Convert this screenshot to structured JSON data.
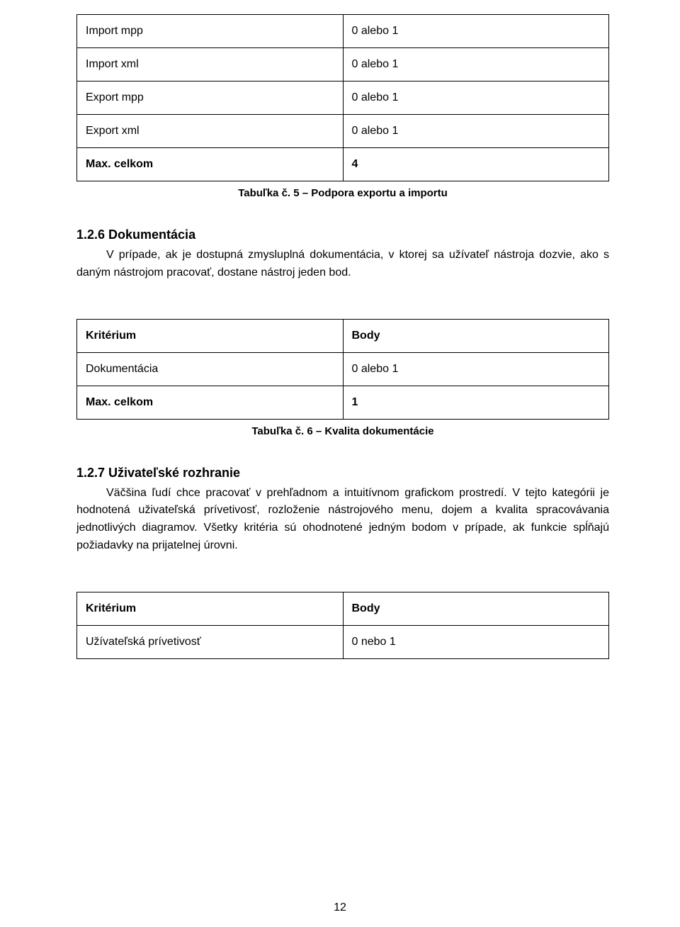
{
  "page_number": "12",
  "table5": {
    "rows": [
      {
        "label": "Import mpp",
        "value": "0 alebo 1",
        "bold": false
      },
      {
        "label": "Import xml",
        "value": "0 alebo 1",
        "bold": false
      },
      {
        "label": "Export mpp",
        "value": "0 alebo 1",
        "bold": false
      },
      {
        "label": "Export xml",
        "value": "0 alebo 1",
        "bold": false
      },
      {
        "label": "Max. celkom",
        "value": "4",
        "bold": true
      }
    ],
    "caption": "Tabuľka č. 5 – Podpora exportu a importu"
  },
  "section126": {
    "heading": "1.2.6 Dokumentácia",
    "paragraph": "V prípade, ak je dostupná zmysluplná dokumentácia, v ktorej sa užívateľ nástroja dozvie, ako s daným nástrojom pracovať, dostane nástroj jeden bod."
  },
  "table6": {
    "header": {
      "label": "Kritérium",
      "value": "Body"
    },
    "rows": [
      {
        "label": "Dokumentácia",
        "value": "0 alebo 1",
        "bold": false
      },
      {
        "label": "Max. celkom",
        "value": "1",
        "bold": true
      }
    ],
    "caption": "Tabuľka č. 6 – Kvalita dokumentácie"
  },
  "section127": {
    "heading": "1.2.7 Uživateľské rozhranie",
    "paragraph": "Väčšina ľudí chce pracovať v prehľadnom a intuitívnom grafickom prostredí. V tejto kategórii je hodnotená uživateľská prívetivosť, rozloženie nástrojového menu, dojem a kvalita spracovávania jednotlivých diagramov. Všetky kritéria sú ohodnotené jedným bodom v prípade, ak funkcie spĺňajú požiadavky na prijatelnej úrovni."
  },
  "table7": {
    "header": {
      "label": "Kritérium",
      "value": "Body"
    },
    "rows": [
      {
        "label": "Užívateľská prívetivosť",
        "value": "0 nebo 1",
        "bold": false
      }
    ]
  }
}
